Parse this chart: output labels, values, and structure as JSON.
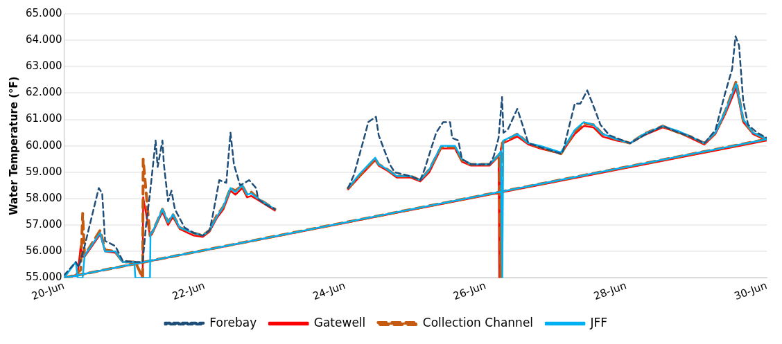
{
  "chart_data": {
    "type": "line",
    "ylabel": "Water Temperature (°F)",
    "x": [
      "--06-20T00:00",
      "--06-20T04:00",
      "--06-20T04:40",
      "--06-20T05:40",
      "--06-20T06:20",
      "--06-20T07:00",
      "--06-20T12:20",
      "--06-20T14:00",
      "--06-20T17:30",
      "--06-20T20:00",
      "--06-21T00:00",
      "--06-21T00:20",
      "--06-21T02:50",
      "--06-21T03:00",
      "--06-21T05:20",
      "--06-21T05:30",
      "--06-21T06:00",
      "--06-21T07:40",
      "--06-21T09:35",
      "--06-21T11:30",
      "--06-21T13:10",
      "--06-21T15:30",
      "--06-21T20:15",
      "--06-21T23:20",
      "--06-22T01:40",
      "--06-22T04:05",
      "--06-22T06:25",
      "--06-22T08:50",
      "--06-22T10:30",
      "--06-22T12:50",
      "--06-22T14:30",
      "--06-22T15:55",
      "--06-22T18:15",
      "--06-22T20:25",
      "--06-23T00:00",
      "--06-23T12:00",
      "--06-24T01:00",
      "--06-24T05:04",
      "--06-24T10:16",
      "--06-24T11:27",
      "--06-24T14:32",
      "--06-24T17:37",
      "--06-24T22:21",
      "--06-25T01:39",
      "--06-25T04:44",
      "--06-25T08:45",
      "--06-25T13:29",
      "--06-25T15:52",
      "--06-25T18:56",
      "--06-26T01:19",
      "--06-26T04:24",
      "--06-26T04:40",
      "--06-26T05:10",
      "--06-26T05:40",
      "--06-26T06:00",
      "--06-26T10:48",
      "--06-26T14:34",
      "--06-26T18:36",
      "--06-27T01:42",
      "--06-27T06:26",
      "--06-27T09:30",
      "--06-27T12:50",
      "--06-27T15:55",
      "--06-27T20:38",
      "--06-28T01:22",
      "--06-28T06:06",
      "--06-28T12:30",
      "--06-28T17:57",
      "--06-28T21:58",
      "--06-29T02:41",
      "--06-29T06:28",
      "--06-29T09:48",
      "--06-29T13:35",
      "--06-29T15:58",
      "--06-29T19:16",
      "--06-30T00:00",
      "--06-20T00:00"
    ],
    "series": [
      {
        "name": "Forebay",
        "color": "#1f4e79",
        "line_style": "dashed",
        "x": [
          "--06-20T00:00",
          "--06-20T04:00",
          "--06-20T05:00",
          "--06-20T07:00",
          "--06-20T11:50",
          "--06-20T13:00",
          "--06-20T14:00",
          "--06-20T15:50",
          "--06-20T17:30",
          "--06-20T20:00",
          "--06-21T00:00",
          "--06-21T02:50",
          "--06-21T04:00",
          "--06-21T05:20",
          "--06-21T07:15",
          "--06-21T07:57",
          "--06-21T09:35",
          "--06-21T10:05",
          "--06-21T11:30",
          "--06-21T12:40",
          "--06-21T13:50",
          "--06-21T17:10",
          "--06-21T20:15",
          "--06-21T23:20",
          "--06-22T01:40",
          "--06-22T02:40",
          "--06-22T05:00",
          "--06-22T07:24",
          "--06-22T08:50",
          "--06-22T10:00",
          "--06-22T12:07",
          "--06-22T15:12",
          "--06-22T17:34",
          "--06-22T18:15",
          "--06-22T20:25",
          "--06-23T00:00",
          "--06-23T12:00",
          "--06-24T01:00",
          "--06-24T03:00",
          "--06-24T06:43",
          "--06-24T07:54",
          "--06-24T10:31",
          "--06-24T11:27",
          "--06-24T15:14",
          "--06-24T16:54",
          "--06-24T22:21",
          "--06-25T01:39",
          "--06-25T03:05",
          "--06-25T07:06",
          "--06-25T09:28",
          "--06-25T11:50",
          "--06-25T12:33",
          "--06-25T14:40",
          "--06-25T15:52",
          "--06-25T18:56",
          "--06-26T01:19",
          "--06-26T02:44",
          "--06-26T04:24",
          "--06-26T05:35",
          "--06-26T06:04",
          "--06-26T07:29",
          "--06-26T10:48",
          "--06-26T13:09",
          "--06-26T14:34",
          "--06-26T18:36",
          "--06-27T01:42",
          "--06-27T02:25",
          "--06-27T06:26",
          "--06-27T08:20",
          "--06-27T10:42",
          "--06-27T13:32",
          "--06-27T15:11",
          "--06-27T18:16",
          "--06-28T01:22",
          "--06-28T06:06",
          "--06-28T12:30",
          "--06-28T17:57",
          "--06-28T21:58",
          "--06-29T02:41",
          "--06-29T06:28",
          "--06-29T09:48",
          "--06-29T12:10",
          "--06-29T13:20",
          "--06-29T14:32",
          "--06-29T15:58",
          "--06-29T17:37",
          "--06-29T20:41",
          "--06-30T00:00"
        ],
        "values": [
          55.1,
          55.6,
          55.4,
          56.2,
          58.4,
          58.2,
          56.4,
          56.3,
          56.2,
          55.65,
          55.6,
          55.6,
          57.0,
          58.2,
          60.2,
          59.2,
          60.2,
          59.3,
          57.9,
          58.3,
          57.6,
          56.9,
          56.7,
          56.6,
          56.8,
          57.3,
          58.7,
          58.6,
          60.5,
          59.3,
          58.5,
          58.7,
          58.4,
          58.0,
          57.8,
          57.6,
          null,
          58.4,
          58.9,
          60.4,
          60.9,
          61.1,
          60.4,
          59.3,
          59.0,
          58.85,
          58.7,
          59.1,
          60.5,
          60.9,
          60.9,
          60.3,
          60.2,
          59.5,
          59.3,
          59.3,
          59.6,
          60.3,
          61.85,
          60.5,
          60.6,
          61.4,
          60.6,
          60.1,
          59.95,
          59.7,
          59.8,
          61.6,
          61.6,
          62.1,
          61.3,
          60.8,
          60.4,
          60.1,
          60.4,
          60.75,
          60.5,
          60.35,
          60.1,
          60.6,
          62.0,
          62.9,
          64.15,
          63.8,
          61.7,
          60.8,
          60.5,
          60.3
        ]
      },
      {
        "name": "Gatewell",
        "color": "#ff0000",
        "line_style": "solid",
        "values": [
          55.0,
          55.1,
          55.2,
          56.2,
          55.8,
          55.8,
          56.65,
          56.0,
          55.95,
          55.6,
          55.6,
          55.6,
          55.0,
          58.05,
          56.6,
          56.6,
          56.65,
          57.05,
          57.5,
          57.0,
          57.3,
          56.85,
          56.6,
          56.55,
          56.75,
          57.25,
          57.6,
          58.3,
          58.15,
          58.4,
          58.05,
          58.1,
          57.95,
          57.8,
          57.55,
          null,
          58.35,
          58.85,
          59.45,
          59.25,
          59.05,
          58.8,
          58.8,
          58.65,
          59.0,
          59.9,
          59.9,
          59.4,
          59.25,
          59.25,
          59.6,
          55.0,
          59.9,
          60.05,
          60.1,
          60.35,
          60.05,
          59.9,
          59.7,
          60.45,
          60.75,
          60.7,
          60.35,
          60.2,
          60.1,
          60.4,
          60.7,
          60.5,
          60.3,
          60.05,
          60.45,
          61.2,
          62.2,
          60.9,
          60.45,
          60.2,
          55.0
        ]
      },
      {
        "name": "Collection Channel",
        "color": "#c55a11",
        "line_style": "dashed",
        "values": [
          55.0,
          55.1,
          55.2,
          55.3,
          57.44,
          55.85,
          56.8,
          56.05,
          56.0,
          55.6,
          55.6,
          55.6,
          55.0,
          59.5,
          56.6,
          56.7,
          56.7,
          57.1,
          57.6,
          57.1,
          57.4,
          56.9,
          56.7,
          56.6,
          56.8,
          57.35,
          57.7,
          58.4,
          58.3,
          58.5,
          58.15,
          58.25,
          58.0,
          57.85,
          57.6,
          null,
          58.4,
          58.9,
          59.5,
          59.3,
          59.1,
          58.85,
          58.85,
          58.7,
          59.1,
          59.95,
          59.95,
          59.45,
          59.3,
          59.3,
          59.64,
          59.7,
          55.0,
          60.1,
          60.15,
          60.45,
          60.1,
          59.95,
          59.7,
          60.55,
          60.85,
          60.8,
          60.45,
          60.25,
          60.1,
          60.45,
          60.75,
          60.5,
          60.35,
          60.1,
          60.5,
          61.3,
          62.45,
          60.95,
          60.5,
          60.25,
          55.0
        ]
      },
      {
        "name": "JFF",
        "color": "#00b0f0",
        "line_style": "solid",
        "values": [
          55.0,
          55.6,
          55.0,
          55.0,
          55.0,
          55.85,
          56.7,
          56.0,
          56.0,
          55.6,
          55.6,
          55.0,
          55.0,
          55.0,
          55.0,
          56.7,
          56.7,
          57.1,
          57.6,
          57.1,
          57.4,
          56.9,
          56.7,
          56.6,
          56.8,
          57.3,
          57.7,
          58.4,
          58.25,
          58.5,
          58.15,
          58.2,
          58.0,
          57.85,
          57.6,
          null,
          58.4,
          58.95,
          59.55,
          59.3,
          59.1,
          58.85,
          58.85,
          58.7,
          59.1,
          60.0,
          60.0,
          59.5,
          59.3,
          59.3,
          59.65,
          59.7,
          59.8,
          55.0,
          60.2,
          60.45,
          60.1,
          60.0,
          59.75,
          60.6,
          60.9,
          60.8,
          60.45,
          60.25,
          60.1,
          60.45,
          60.75,
          60.55,
          60.35,
          60.1,
          60.5,
          61.3,
          62.35,
          61.0,
          60.5,
          60.25,
          55.0
        ]
      }
    ],
    "xlim": [
      "--06-20",
      "--06-30"
    ],
    "xticks": [
      {
        "value": "--06-20",
        "label": "20-Jun"
      },
      {
        "value": "--06-22",
        "label": "22-Jun"
      },
      {
        "value": "--06-24",
        "label": "24-Jun"
      },
      {
        "value": "--06-26",
        "label": "26-Jun"
      },
      {
        "value": "--06-28",
        "label": "28-Jun"
      },
      {
        "value": "--06-30",
        "label": "30-Jun"
      }
    ],
    "ylim": [
      55,
      65
    ],
    "yticks": [
      {
        "value": 55,
        "label": "55.000"
      },
      {
        "value": 56,
        "label": "56.000"
      },
      {
        "value": 57,
        "label": "57.000"
      },
      {
        "value": 58,
        "label": "58.000"
      },
      {
        "value": 59,
        "label": "59.000"
      },
      {
        "value": 60,
        "label": "60.000"
      },
      {
        "value": 61,
        "label": "61.000"
      },
      {
        "value": 62,
        "label": "62.000"
      },
      {
        "value": 63,
        "label": "63.000"
      },
      {
        "value": 64,
        "label": "64.000"
      },
      {
        "value": 65,
        "label": "65.000"
      }
    ],
    "grid": "y",
    "legend": "bottom",
    "marker": "none"
  }
}
